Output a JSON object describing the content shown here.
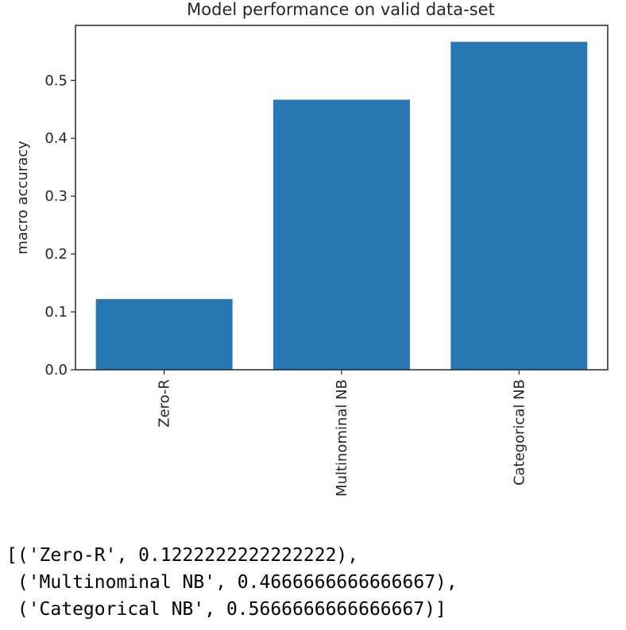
{
  "chart_data": {
    "type": "bar",
    "title": "Model performance on valid data-set",
    "xlabel": "",
    "ylabel": "macro accuracy",
    "categories": [
      "Zero-R",
      "Multinominal NB",
      "Categorical NB"
    ],
    "values": [
      0.1222222222222222,
      0.4666666666666667,
      0.5666666666666667
    ],
    "ylim": [
      0,
      0.595
    ],
    "yticks": [
      0.0,
      0.1,
      0.2,
      0.3,
      0.4,
      0.5
    ],
    "ytick_labels": [
      "0.0",
      "0.1",
      "0.2",
      "0.3",
      "0.4",
      "0.5"
    ],
    "xtick_rotation": "vertical",
    "grid": false,
    "bar_color": "#2878b4"
  },
  "output": {
    "lines": [
      "[('Zero-R', 0.1222222222222222),",
      " ('Multinominal NB', 0.4666666666666667),",
      " ('Categorical NB', 0.5666666666666667)]"
    ]
  }
}
